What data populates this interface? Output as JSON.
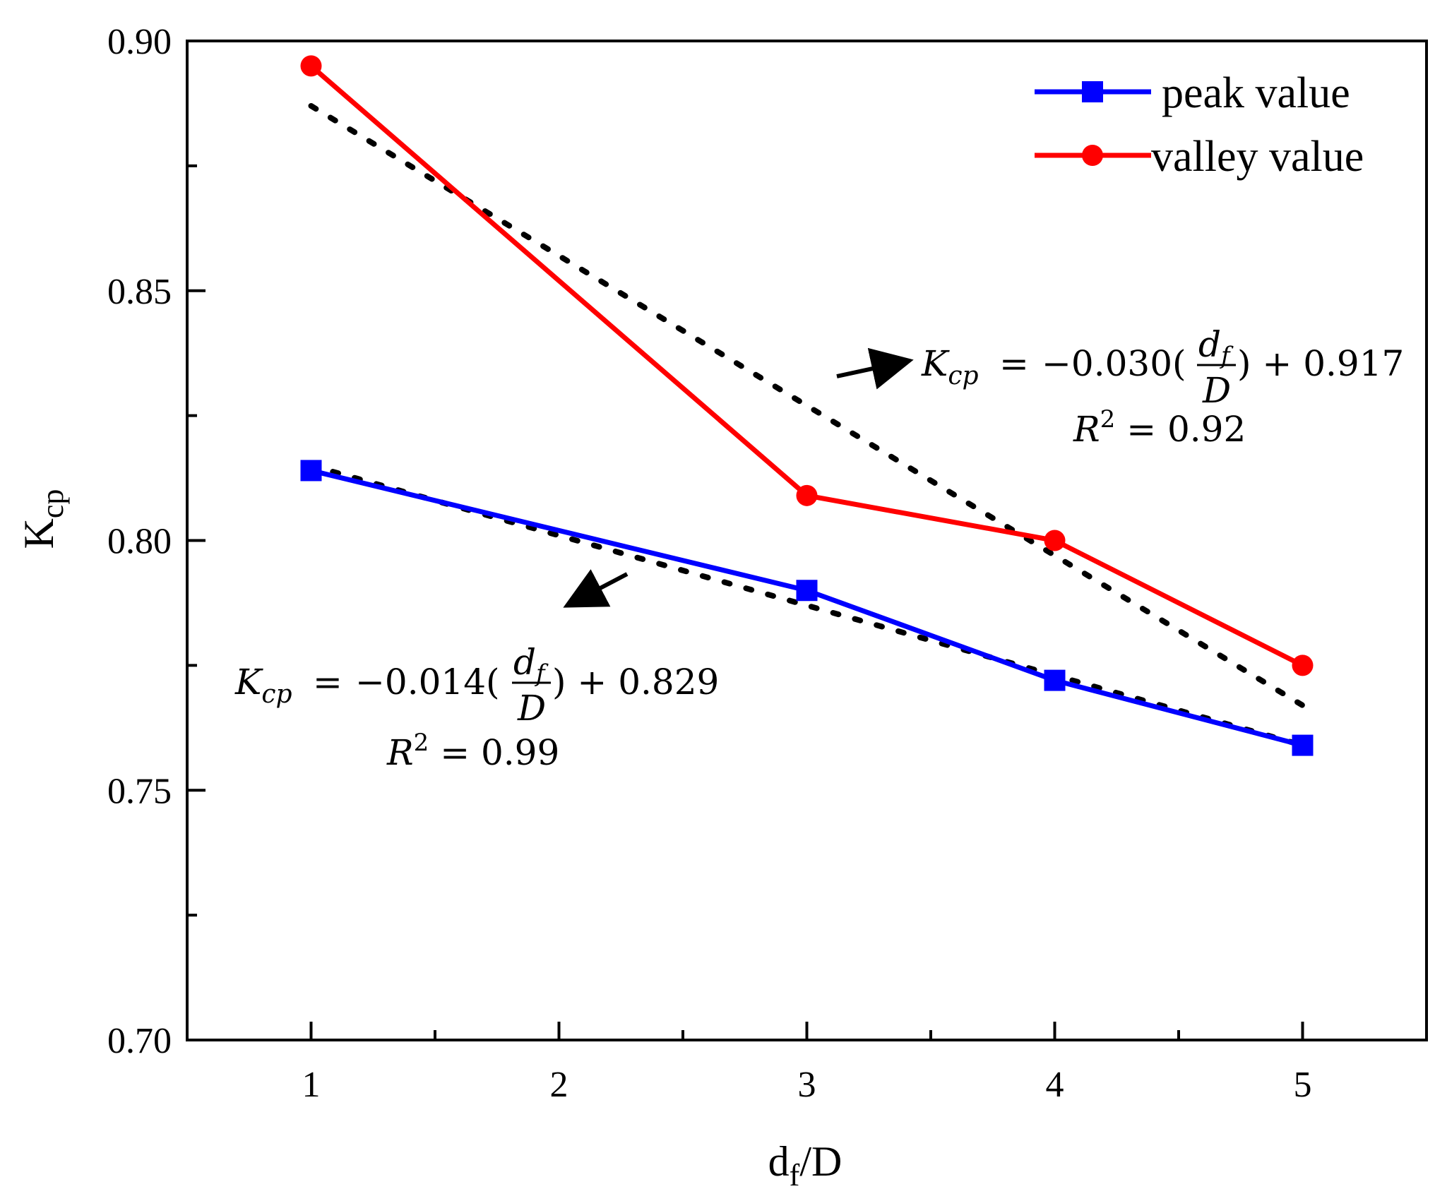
{
  "chart_data": {
    "type": "line",
    "x": [
      1,
      3,
      4,
      5
    ],
    "series": [
      {
        "name": "peak value",
        "color": "#0000ff",
        "marker": "square",
        "values": [
          0.814,
          0.79,
          0.772,
          0.759
        ]
      },
      {
        "name": "valley value",
        "color": "#ff0000",
        "marker": "circle",
        "values": [
          0.895,
          0.809,
          0.8,
          0.775
        ]
      }
    ],
    "fits": [
      {
        "series": "valley value",
        "slope": -0.03,
        "intercept": 0.917,
        "equation": "K_cp = -0.030(d_f/D) + 0.917",
        "r2_label": "R² = 0.92",
        "style": "dotted"
      },
      {
        "series": "peak value",
        "slope": -0.014,
        "intercept": 0.829,
        "equation": "K_cp = -0.014(d_f/D) + 0.829",
        "r2_label": "R² = 0.99",
        "style": "dotted"
      }
    ],
    "xlabel": "d_f/D",
    "ylabel": "K_cp",
    "xlim": [
      0.5,
      5.5
    ],
    "ylim": [
      0.7,
      0.9
    ],
    "xticks": [
      1,
      2,
      3,
      4,
      5
    ],
    "yticks": [
      0.7,
      0.75,
      0.8,
      0.85,
      0.9
    ],
    "ytick_labels": [
      "0.70",
      "0.75",
      "0.80",
      "0.85",
      "0.90"
    ],
    "legend_position": "top-right",
    "grid": false
  },
  "annotations": {
    "valley_eq": {
      "lhs_base": "K",
      "lhs_sub": "cp",
      "equals": "=",
      "coef": "−0.030(",
      "frac_num_base": "d",
      "frac_num_sub": "f",
      "frac_den": "D",
      "rest": ") + 0.917",
      "r2_base": "R",
      "r2_sup": "2",
      "r2_rest": " = 0.92"
    },
    "peak_eq": {
      "lhs_base": "K",
      "lhs_sub": "cp",
      "equals": "=",
      "coef": "−0.014(",
      "frac_num_base": "d",
      "frac_num_sub": "f",
      "frac_den": "D",
      "rest": ") + 0.829",
      "r2_base": "R",
      "r2_sup": "2",
      "r2_rest": " = 0.99"
    }
  },
  "axis_text": {
    "ylabel_base": "K",
    "ylabel_sub": "cp",
    "xlabel_base": "d",
    "xlabel_sub": "f",
    "xlabel_rest": "/D"
  }
}
